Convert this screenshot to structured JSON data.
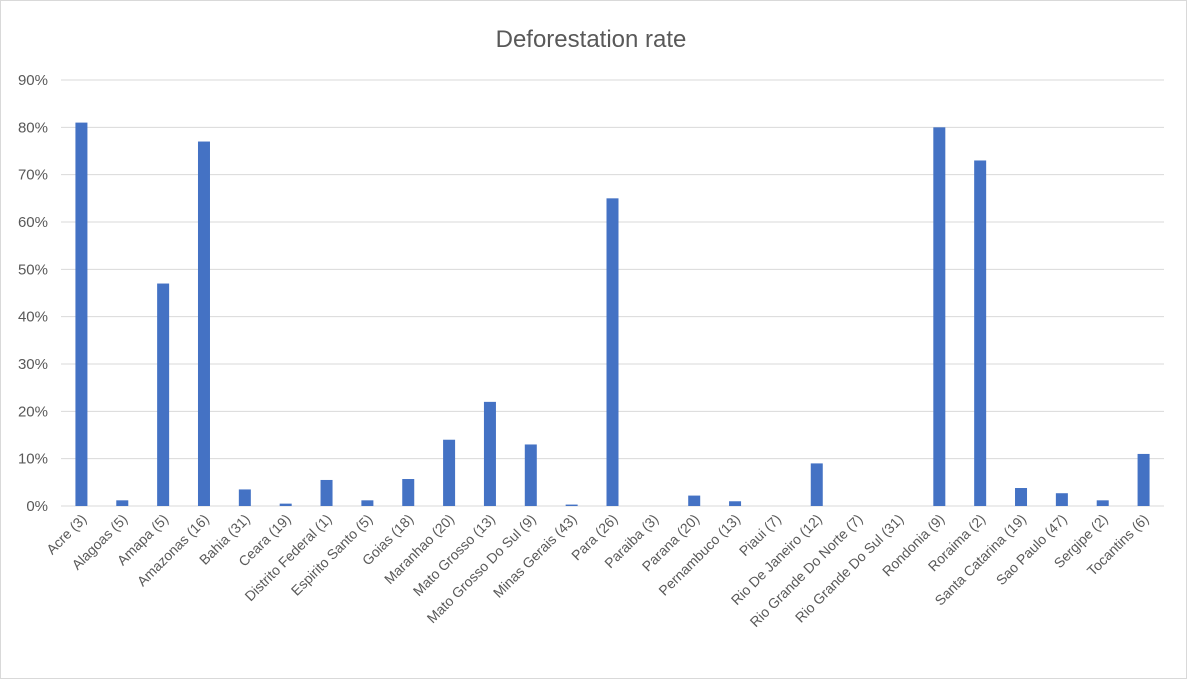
{
  "chart_data": {
    "type": "bar",
    "title": "Deforestation rate",
    "xlabel": "",
    "ylabel": "",
    "ylim": [
      0,
      90
    ],
    "yticks": [
      "0%",
      "10%",
      "20%",
      "30%",
      "40%",
      "50%",
      "60%",
      "70%",
      "80%",
      "90%"
    ],
    "grid": true,
    "legend": "none",
    "bar_color": "#4472C4",
    "categories": [
      "Acre (3)",
      "Alagoas (5)",
      "Amapa (5)",
      "Amazonas (16)",
      "Bahia (31)",
      "Ceara (19)",
      "Distrito Federal (1)",
      "Espirito Santo (5)",
      "Goias (18)",
      "Maranhao (20)",
      "Mato Grosso (13)",
      "Mato Grosso Do Sul (9)",
      "Minas Gerais (43)",
      "Para (26)",
      "Paraiba (3)",
      "Parana (20)",
      "Pernambuco (13)",
      "Piaui (7)",
      "Rio De Janeiro (12)",
      "Rio Grande Do Norte (7)",
      "Rio Grande Do Sul (31)",
      "Rondonia (9)",
      "Roraima (2)",
      "Santa Catarina (19)",
      "Sao Paulo (47)",
      "Sergipe (2)",
      "Tocantins (6)"
    ],
    "series": [
      {
        "values": [
          81,
          1.2,
          47,
          77,
          3.5,
          0.5,
          5.5,
          1.2,
          5.7,
          14,
          22,
          13,
          0.3,
          65,
          0,
          2.2,
          1.0,
          0,
          9,
          0,
          0,
          80,
          73,
          3.8,
          2.7,
          1.2,
          11
        ]
      }
    ]
  }
}
